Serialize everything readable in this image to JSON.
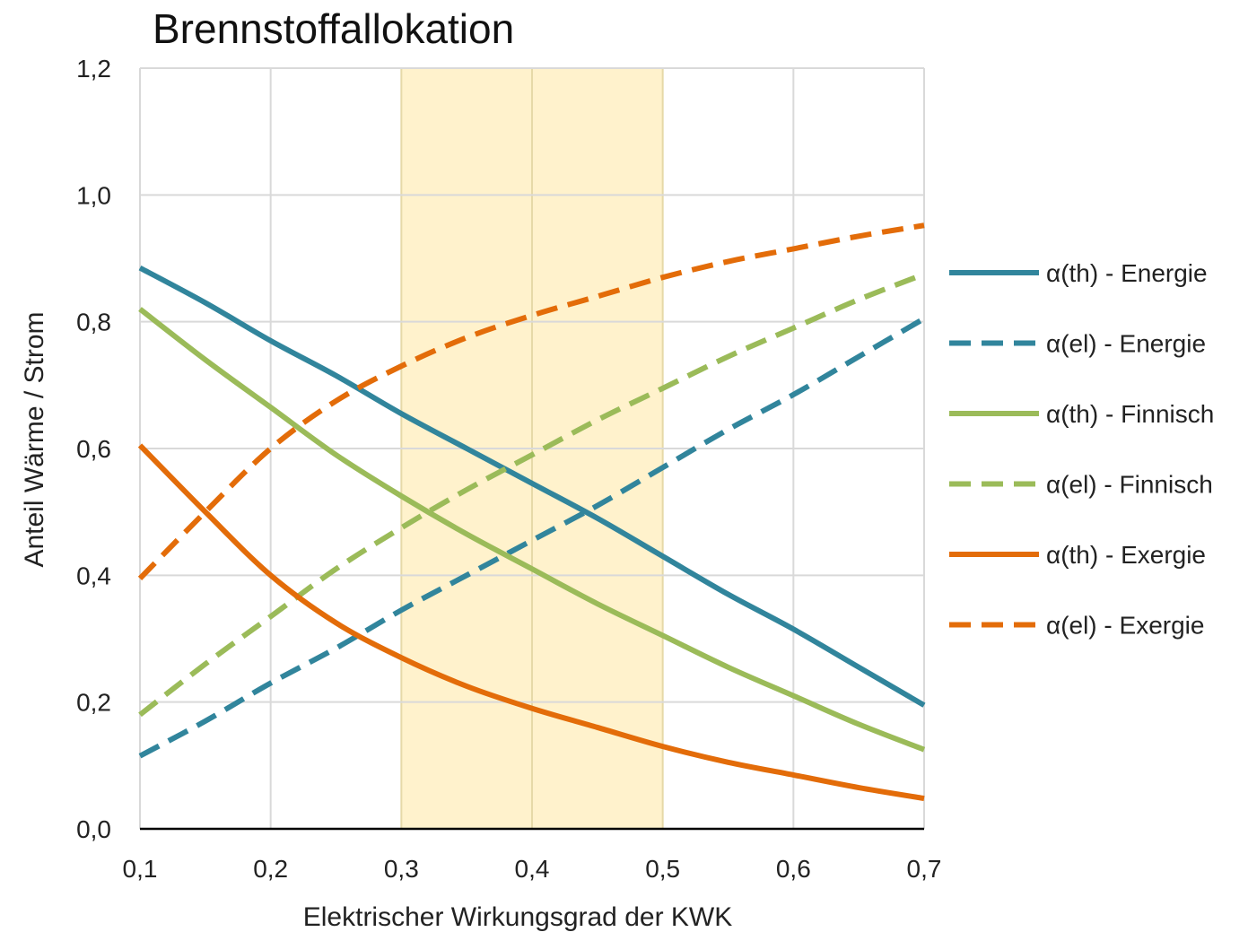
{
  "chart_data": {
    "type": "line",
    "title": "Brennstoffallokation",
    "xlabel": "Elektrischer Wirkungsgrad der KWK",
    "ylabel": "Anteil Wärme / Strom",
    "xlim": [
      0.1,
      0.7
    ],
    "ylim": [
      0.0,
      1.2
    ],
    "x_ticks": [
      "0,1",
      "0,2",
      "0,3",
      "0,4",
      "0,5",
      "0,6",
      "0,7"
    ],
    "y_ticks": [
      "0,0",
      "0,2",
      "0,4",
      "0,6",
      "0,8",
      "1,0",
      "1,2"
    ],
    "grid": true,
    "legend_position": "right",
    "highlight_band": {
      "x": [
        0.3,
        0.5
      ],
      "color": "#FFF2CC",
      "border_color": "#E6D9A8"
    },
    "x": [
      0.1,
      0.15,
      0.2,
      0.25,
      0.3,
      0.35,
      0.4,
      0.45,
      0.5,
      0.55,
      0.6,
      0.65,
      0.7
    ],
    "series": [
      {
        "name": "α(th) - Energie",
        "color": "#31859C",
        "dashed": false,
        "values": [
          0.885,
          0.83,
          0.77,
          0.715,
          0.655,
          0.6,
          0.545,
          0.49,
          0.43,
          0.37,
          0.315,
          0.255,
          0.195
        ]
      },
      {
        "name": "α(el) - Energie",
        "color": "#31859C",
        "dashed": true,
        "values": [
          0.115,
          0.17,
          0.23,
          0.285,
          0.345,
          0.4,
          0.455,
          0.51,
          0.57,
          0.63,
          0.685,
          0.745,
          0.805
        ]
      },
      {
        "name": "α(th) - Finnisch",
        "color": "#9BBB59",
        "dashed": false,
        "values": [
          0.82,
          0.74,
          0.665,
          0.59,
          0.525,
          0.465,
          0.41,
          0.355,
          0.305,
          0.255,
          0.21,
          0.165,
          0.125
        ]
      },
      {
        "name": "α(el) - Finnisch",
        "color": "#9BBB59",
        "dashed": true,
        "values": [
          0.18,
          0.26,
          0.335,
          0.41,
          0.475,
          0.535,
          0.59,
          0.645,
          0.695,
          0.745,
          0.79,
          0.835,
          0.875
        ]
      },
      {
        "name": "α(th) - Exergie",
        "color": "#E36C09",
        "dashed": false,
        "values": [
          0.605,
          0.5,
          0.4,
          0.325,
          0.27,
          0.225,
          0.19,
          0.16,
          0.13,
          0.105,
          0.085,
          0.065,
          0.048
        ]
      },
      {
        "name": "α(el) - Exergie",
        "color": "#E36C09",
        "dashed": true,
        "values": [
          0.395,
          0.5,
          0.6,
          0.675,
          0.73,
          0.775,
          0.81,
          0.84,
          0.87,
          0.895,
          0.915,
          0.935,
          0.952
        ]
      }
    ]
  }
}
